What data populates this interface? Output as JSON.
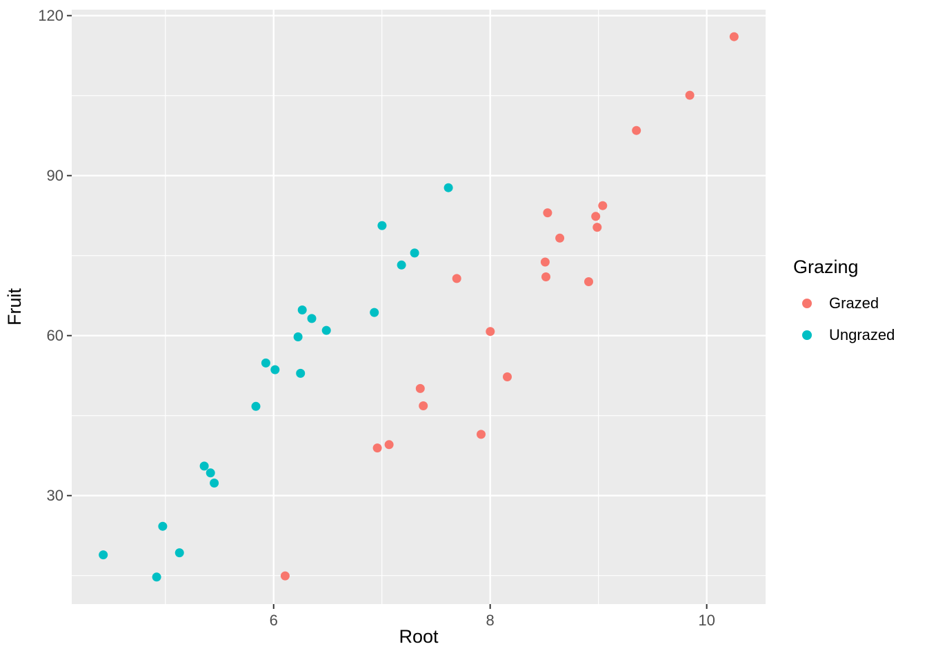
{
  "chart_data": {
    "type": "scatter",
    "title": "",
    "xlabel": "Root",
    "ylabel": "Fruit",
    "xlim": [
      4.135,
      10.544
    ],
    "ylim": [
      9.66,
      121.12
    ],
    "x_major_ticks": [
      6,
      8,
      10
    ],
    "x_minor_ticks": [
      5,
      7,
      9
    ],
    "y_major_ticks": [
      30,
      60,
      90,
      120
    ],
    "y_minor_ticks": [
      15,
      45,
      75,
      105
    ],
    "grid": true,
    "legend_position": "right",
    "panel_background": "#EBEBEB",
    "grid_color": "#FFFFFF",
    "tick_color": "#333333",
    "tick_label_color": "#4D4D4D",
    "axis_title_color": "#000000",
    "legend": {
      "title": "Grazing",
      "entries": [
        {
          "label": "Grazed",
          "color": "#F8766D"
        },
        {
          "label": "Ungrazed",
          "color": "#00BFC4"
        }
      ]
    },
    "series": [
      {
        "name": "Grazed",
        "color": "#F8766D",
        "points": [
          [
            6.106,
            14.95
          ],
          [
            6.958,
            38.94
          ],
          [
            7.066,
            39.55
          ],
          [
            7.354,
            50.08
          ],
          [
            7.382,
            46.83
          ],
          [
            7.691,
            70.7
          ],
          [
            7.916,
            41.48
          ],
          [
            8.001,
            60.77
          ],
          [
            8.158,
            52.26
          ],
          [
            8.508,
            73.79
          ],
          [
            8.515,
            71.01
          ],
          [
            8.53,
            83.03
          ],
          [
            8.643,
            78.28
          ],
          [
            8.91,
            70.11
          ],
          [
            8.975,
            82.35
          ],
          [
            8.988,
            80.31
          ],
          [
            9.039,
            84.37
          ],
          [
            9.351,
            98.47
          ],
          [
            9.844,
            105.07
          ],
          [
            10.253,
            116.05
          ]
        ]
      },
      {
        "name": "Ungrazed",
        "color": "#00BFC4",
        "points": [
          [
            4.426,
            18.89
          ],
          [
            4.919,
            14.73
          ],
          [
            4.975,
            24.25
          ],
          [
            5.13,
            19.28
          ],
          [
            5.359,
            35.53
          ],
          [
            5.417,
            34.25
          ],
          [
            5.451,
            32.35
          ],
          [
            5.836,
            46.73
          ],
          [
            5.928,
            54.86
          ],
          [
            6.013,
            53.61
          ],
          [
            6.225,
            59.77
          ],
          [
            6.248,
            52.92
          ],
          [
            6.264,
            64.81
          ],
          [
            6.352,
            63.21
          ],
          [
            6.487,
            60.98
          ],
          [
            6.93,
            64.34
          ],
          [
            7.001,
            80.64
          ],
          [
            7.181,
            73.24
          ],
          [
            7.302,
            75.49
          ],
          [
            7.614,
            87.73
          ]
        ]
      }
    ]
  }
}
